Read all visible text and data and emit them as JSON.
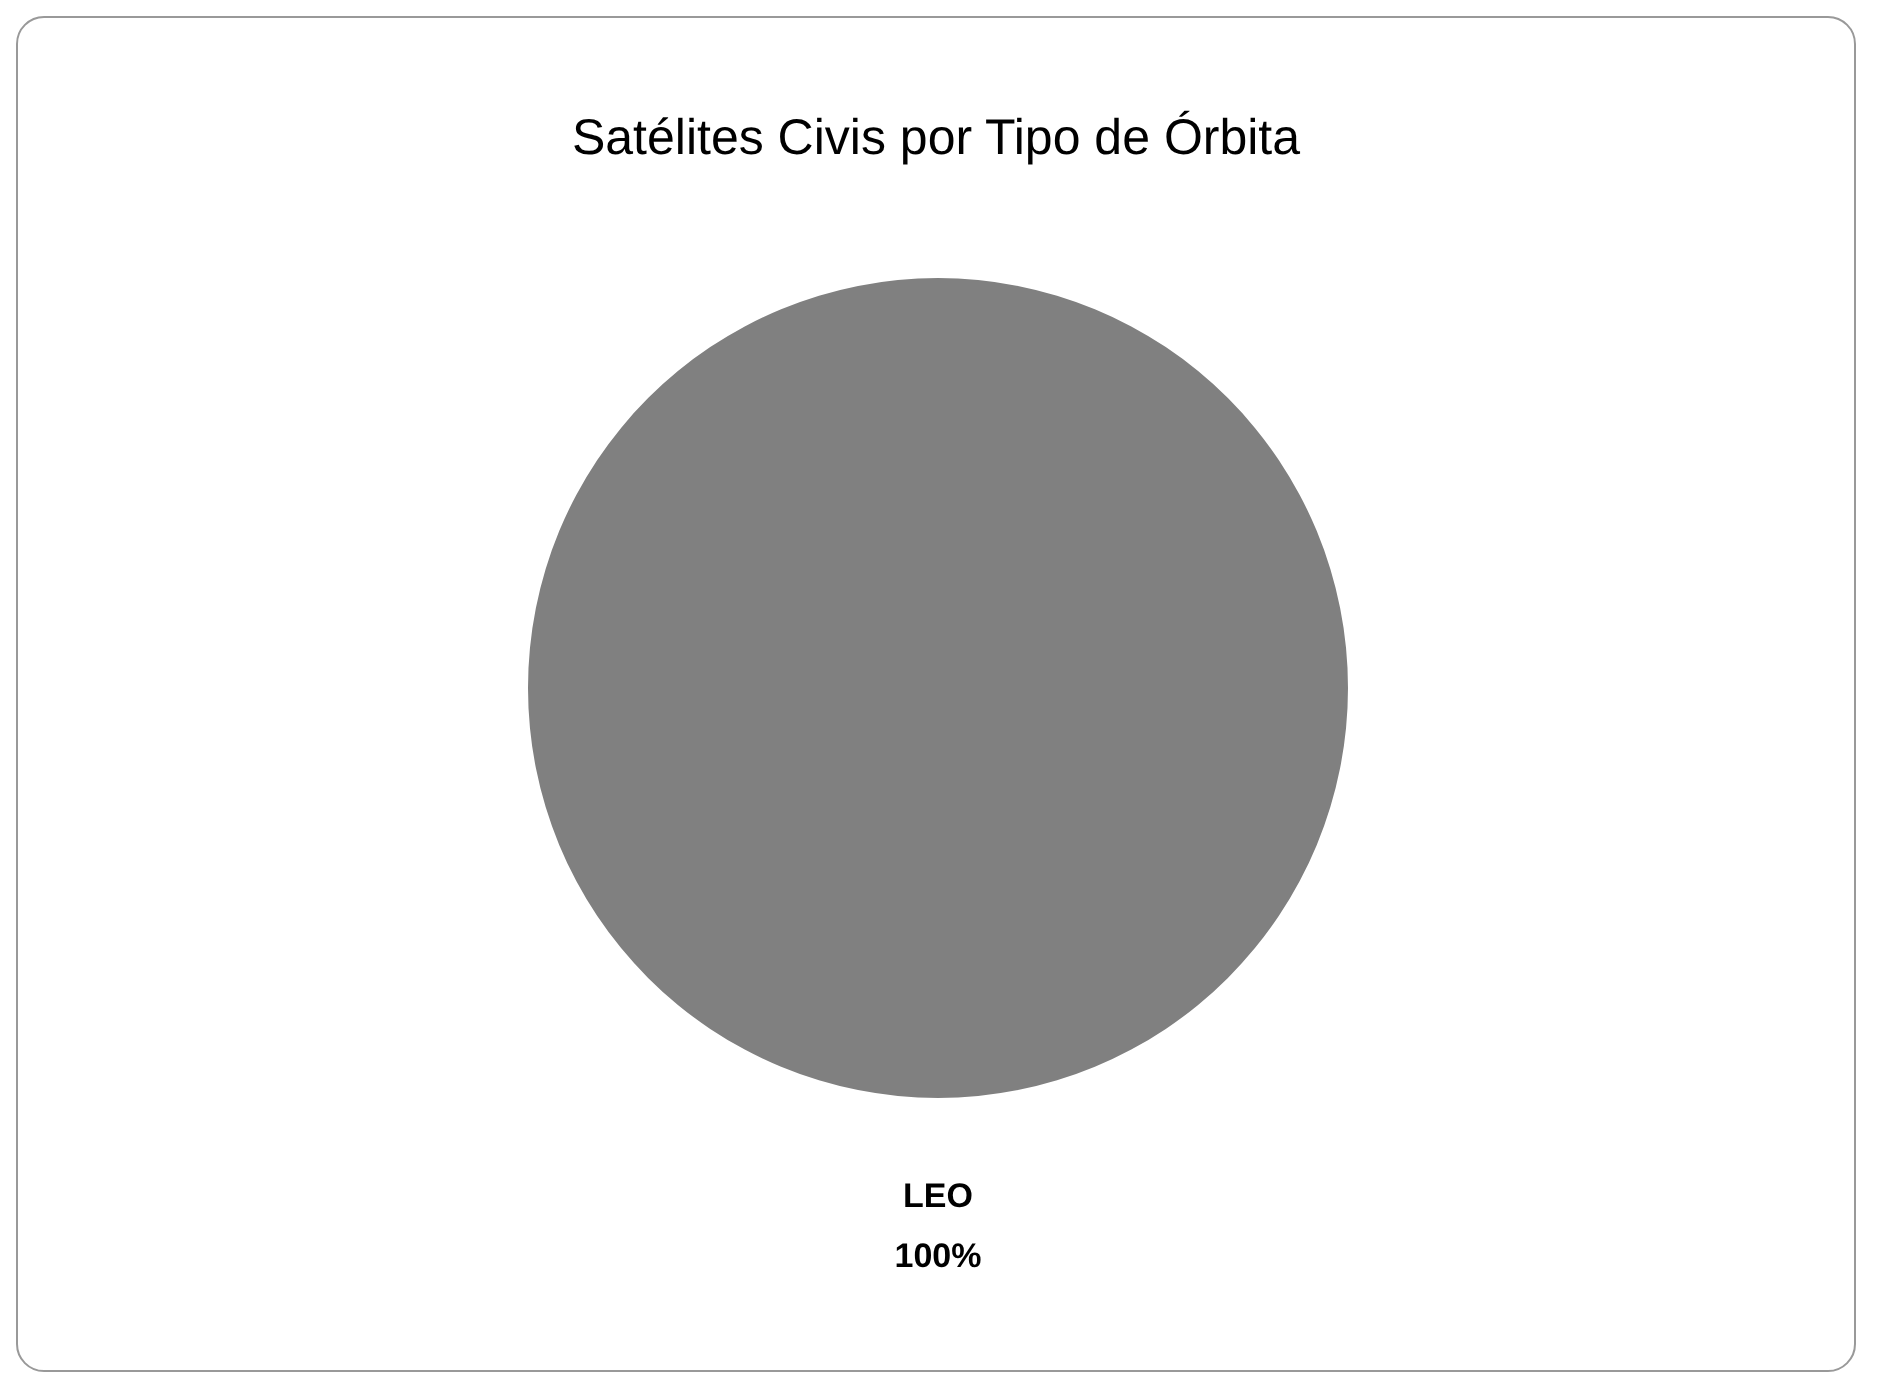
{
  "chart_data": {
    "type": "pie",
    "title": "Satélites Civis por Tipo de Órbita",
    "categories": [
      "LEO"
    ],
    "values": [
      100
    ],
    "colors": [
      "#808080"
    ],
    "value_labels": [
      "100%"
    ]
  }
}
